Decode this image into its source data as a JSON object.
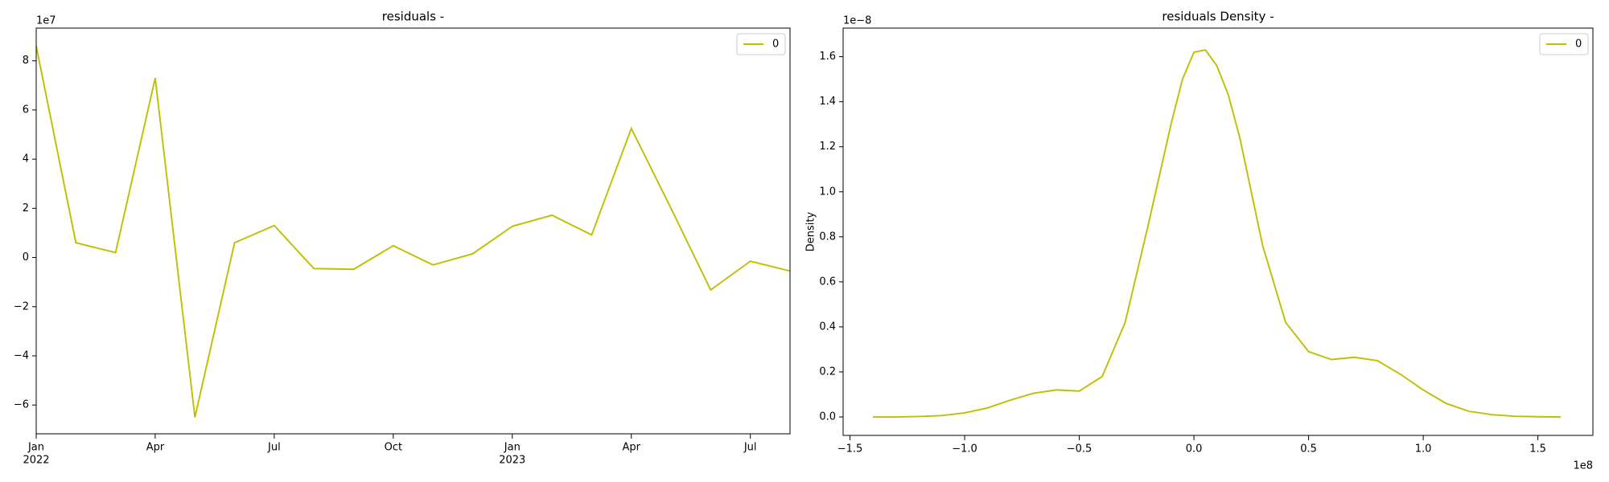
{
  "chart_data": [
    {
      "type": "line",
      "title": "residuals -",
      "y_offset_label": "1e7",
      "x": [
        "2022-01",
        "2022-02",
        "2022-03",
        "2022-04",
        "2022-05",
        "2022-06",
        "2022-07",
        "2022-08",
        "2022-09",
        "2022-10",
        "2022-11",
        "2022-12",
        "2023-01",
        "2023-02",
        "2023-03",
        "2023-04",
        "2023-05",
        "2023-06",
        "2023-07",
        "2023-08"
      ],
      "series": [
        {
          "name": "0",
          "color": "#bfbf00",
          "values": [
            8.6,
            0.6,
            0.2,
            7.3,
            -6.5,
            0.6,
            1.3,
            -0.45,
            -0.48,
            0.48,
            -0.3,
            0.15,
            1.27,
            1.72,
            0.92,
            5.25,
            2.0,
            -1.32,
            -0.15,
            -0.55
          ]
        }
      ],
      "xlim": [
        "2022-01",
        "2023-08"
      ],
      "xticks": [
        {
          "value": "2022-01",
          "label": "Jan"
        },
        {
          "value": "2022-04",
          "label": "Apr"
        },
        {
          "value": "2022-07",
          "label": "Jul"
        },
        {
          "value": "2022-10",
          "label": "Oct"
        },
        {
          "value": "2023-01",
          "label": "Jan"
        },
        {
          "value": "2023-04",
          "label": "Apr"
        },
        {
          "value": "2023-07",
          "label": "Jul"
        }
      ],
      "xtick_years": [
        {
          "value": "2022-01",
          "label": "2022"
        },
        {
          "value": "2023-01",
          "label": "2023"
        }
      ],
      "ylim": [
        -7.17,
        9.33
      ],
      "yticks": [
        {
          "value": -6,
          "label": "−6"
        },
        {
          "value": -4,
          "label": "−4"
        },
        {
          "value": -2,
          "label": "−2"
        },
        0,
        2,
        4,
        6,
        8
      ],
      "legend": "upper right"
    },
    {
      "type": "line",
      "title": "residuals Density -",
      "y_label": "Density",
      "y_offset_label": "1e−8",
      "x_offset_label": "1e8",
      "x": [
        -1.4,
        -1.3,
        -1.2,
        -1.1,
        -1.0,
        -0.9,
        -0.8,
        -0.7,
        -0.6,
        -0.5,
        -0.4,
        -0.3,
        -0.2,
        -0.1,
        -0.05,
        0.0,
        0.05,
        0.1,
        0.15,
        0.2,
        0.3,
        0.4,
        0.5,
        0.6,
        0.7,
        0.8,
        0.9,
        1.0,
        1.1,
        1.2,
        1.3,
        1.4,
        1.5,
        1.6
      ],
      "series": [
        {
          "name": "0",
          "color": "#bfbf00",
          "values": [
            0.0,
            0.0,
            0.002,
            0.006,
            0.018,
            0.04,
            0.075,
            0.105,
            0.12,
            0.115,
            0.18,
            0.42,
            0.85,
            1.3,
            1.5,
            1.62,
            1.63,
            1.56,
            1.43,
            1.24,
            0.76,
            0.42,
            0.29,
            0.255,
            0.265,
            0.25,
            0.19,
            0.12,
            0.06,
            0.025,
            0.01,
            0.003,
            0.001,
            0.0
          ]
        }
      ],
      "xlim": [
        -1.53,
        1.74
      ],
      "xticks": [
        {
          "value": -1.5,
          "label": "−1.5"
        },
        {
          "value": -1.0,
          "label": "−1.0"
        },
        {
          "value": -0.5,
          "label": "−0.5"
        },
        {
          "value": 0,
          "label": "0.0"
        },
        {
          "value": 0.5,
          "label": "0.5"
        },
        {
          "value": 1.0,
          "label": "1.0"
        },
        {
          "value": 1.5,
          "label": "1.5"
        }
      ],
      "ylim": [
        -0.082,
        1.727
      ],
      "yticks": [
        {
          "value": 0,
          "label": "0.0"
        },
        {
          "value": 0.2,
          "label": "0.2"
        },
        {
          "value": 0.4,
          "label": "0.4"
        },
        {
          "value": 0.6,
          "label": "0.6"
        },
        {
          "value": 0.8,
          "label": "0.8"
        },
        {
          "value": 1.0,
          "label": "1.0"
        },
        {
          "value": 1.2,
          "label": "1.2"
        },
        {
          "value": 1.4,
          "label": "1.4"
        },
        {
          "value": 1.6,
          "label": "1.6"
        }
      ],
      "legend": "upper right"
    }
  ]
}
